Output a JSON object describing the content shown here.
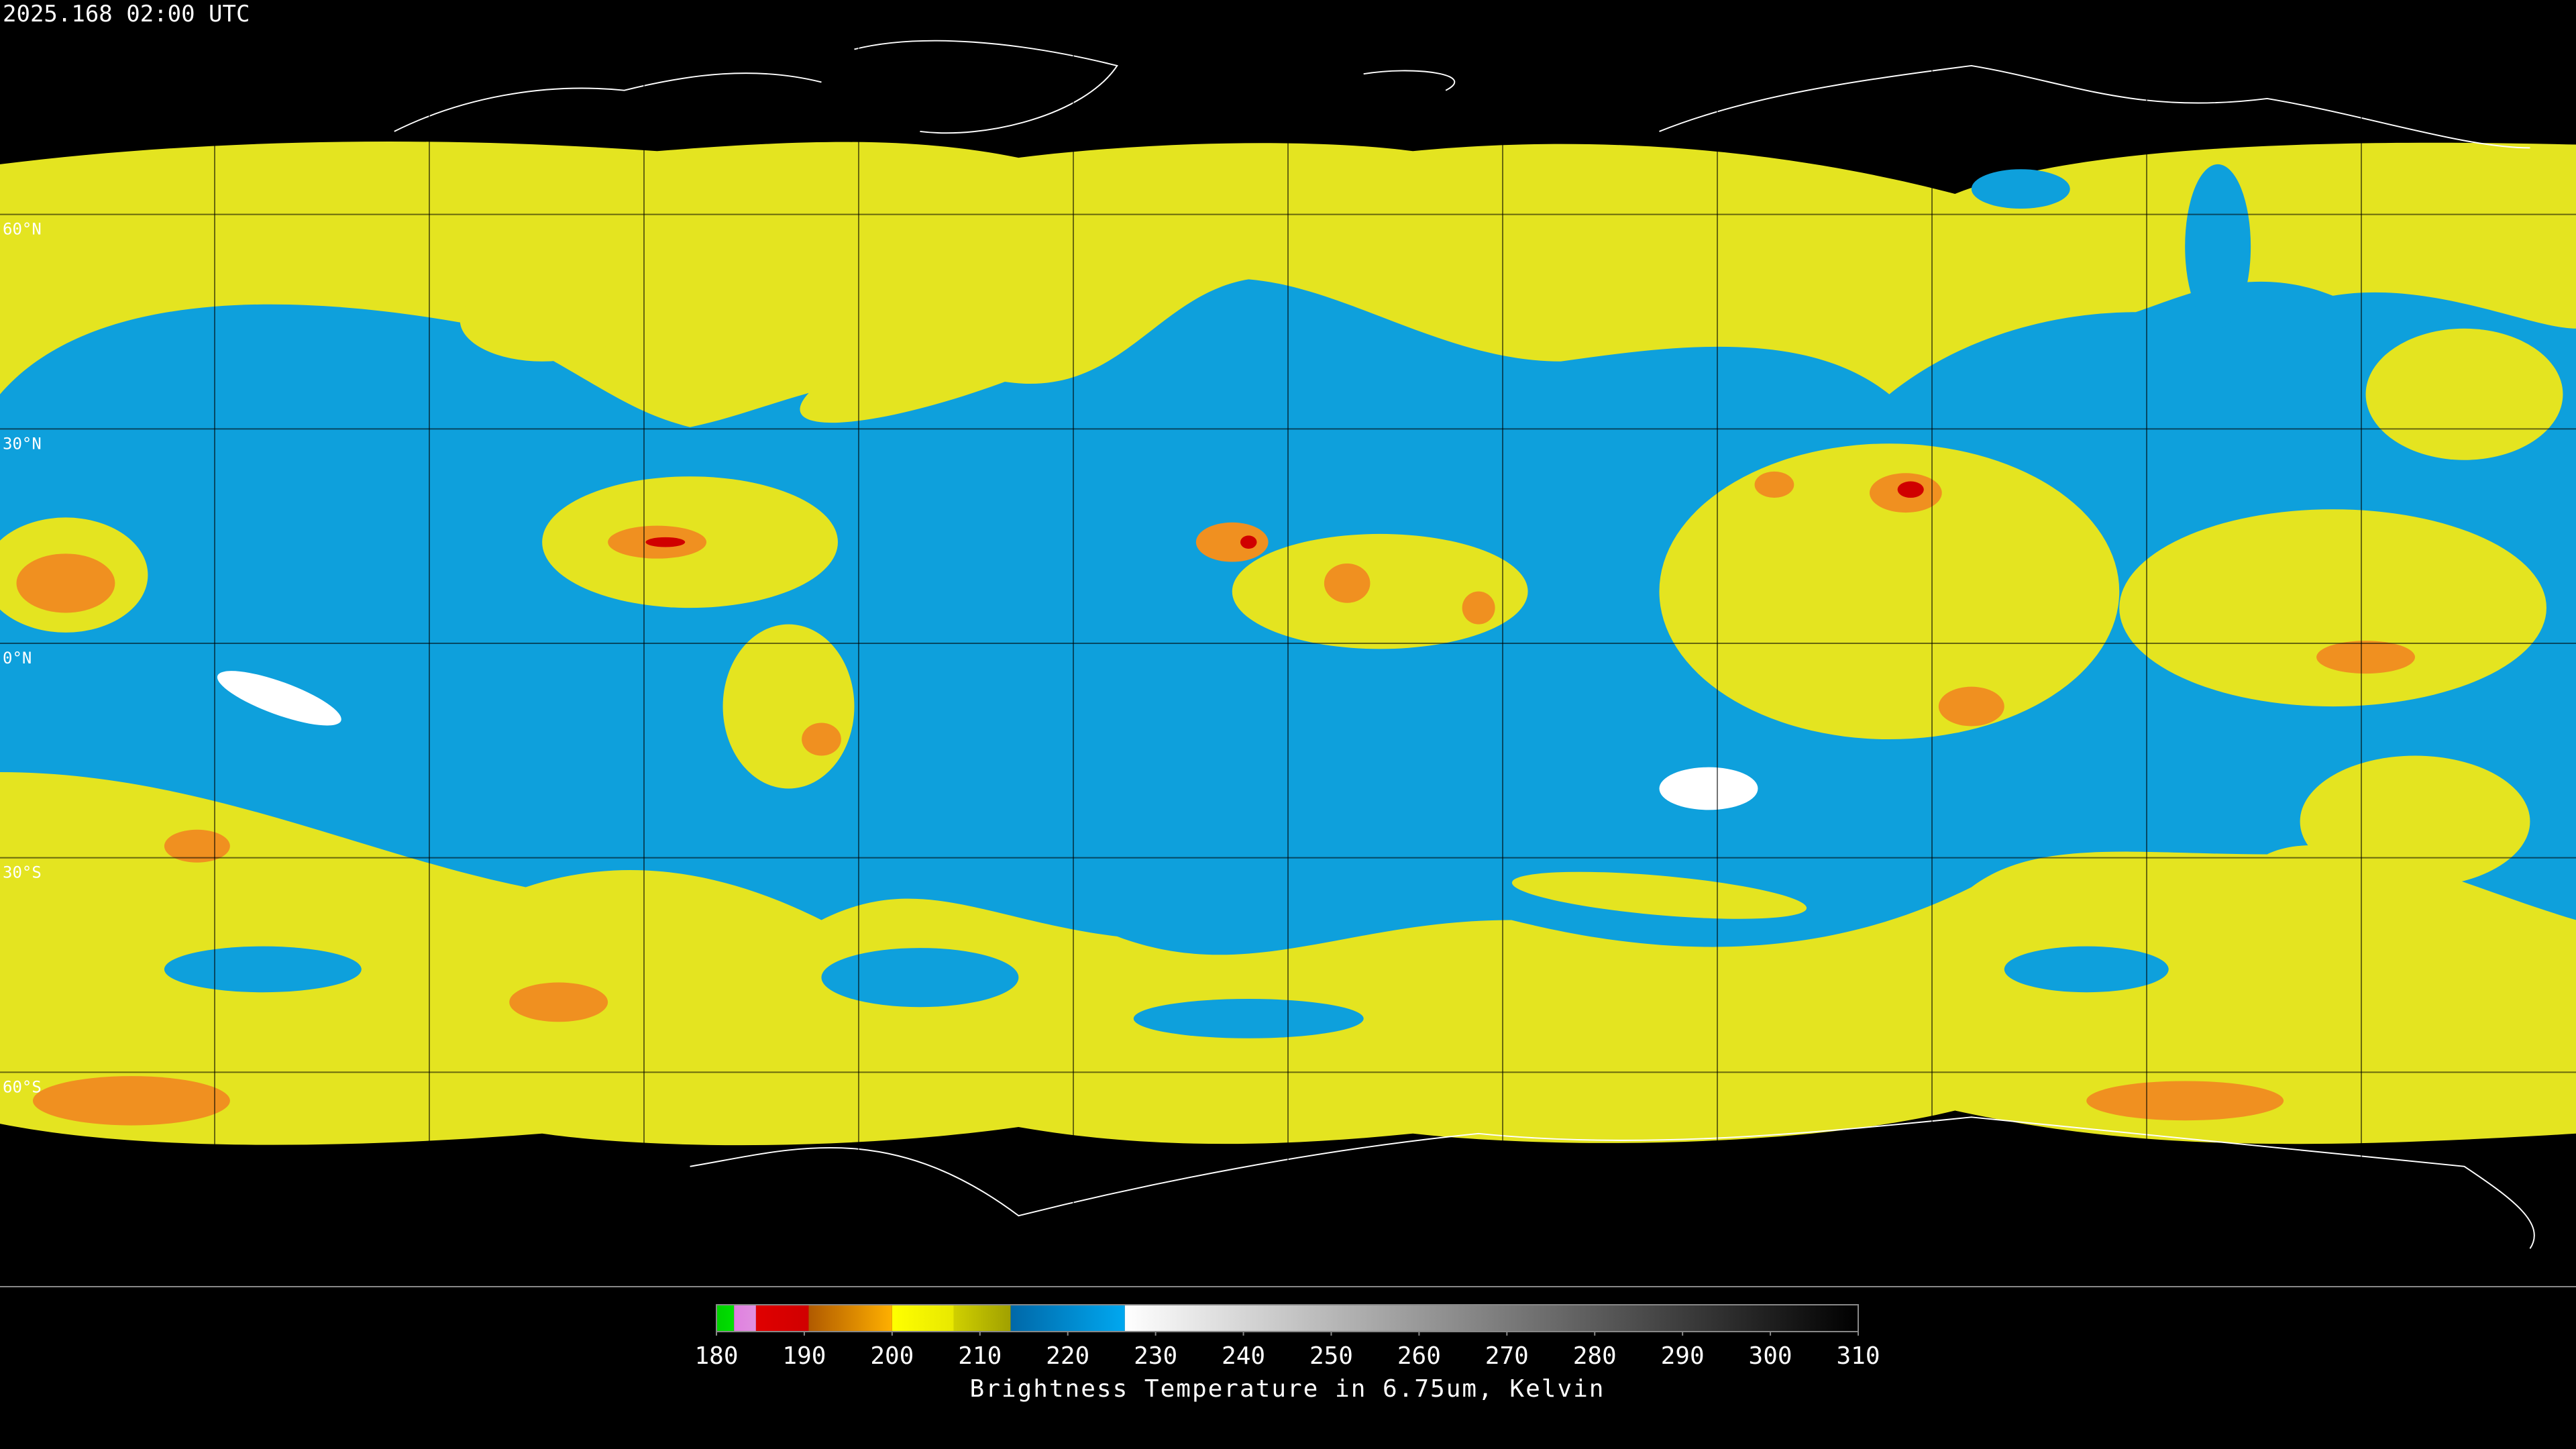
{
  "header": {
    "timestamp": "2025.168 02:00 UTC"
  },
  "map": {
    "lat_lim": [
      90,
      -90
    ],
    "latitudes": [
      {
        "value": 60,
        "label": "60°N"
      },
      {
        "value": 30,
        "label": "30°N"
      },
      {
        "value": 0,
        "label": "0°N"
      },
      {
        "value": -30,
        "label": "30°S"
      },
      {
        "value": -60,
        "label": "60°S"
      }
    ]
  },
  "colorbar": {
    "range": [
      180,
      310
    ],
    "ticks": [
      180,
      190,
      200,
      210,
      220,
      230,
      240,
      250,
      260,
      270,
      280,
      290,
      300,
      310
    ],
    "segments": [
      {
        "from": 180,
        "to": 182,
        "colors": [
          "#00d000",
          "#00e000"
        ]
      },
      {
        "from": 182,
        "to": 184.5,
        "colors": [
          "#e080e0",
          "#e090e0"
        ]
      },
      {
        "from": 184.5,
        "to": 190.5,
        "colors": [
          "#e00000",
          "#d00000"
        ]
      },
      {
        "from": 190.5,
        "to": 200,
        "colors": [
          "#b05a00",
          "#ffb000"
        ]
      },
      {
        "from": 200,
        "to": 207,
        "colors": [
          "#ffff00",
          "#e8e800"
        ]
      },
      {
        "from": 207,
        "to": 213.5,
        "colors": [
          "#d0d000",
          "#a0a000"
        ]
      },
      {
        "from": 213.5,
        "to": 226.5,
        "colors": [
          "#0068a8",
          "#00a8f0"
        ]
      },
      {
        "from": 226.5,
        "to": 310,
        "colors": [
          "#ffffff",
          "#000000"
        ]
      }
    ],
    "label": "Brightness Temperature in 6.75um, Kelvin"
  }
}
